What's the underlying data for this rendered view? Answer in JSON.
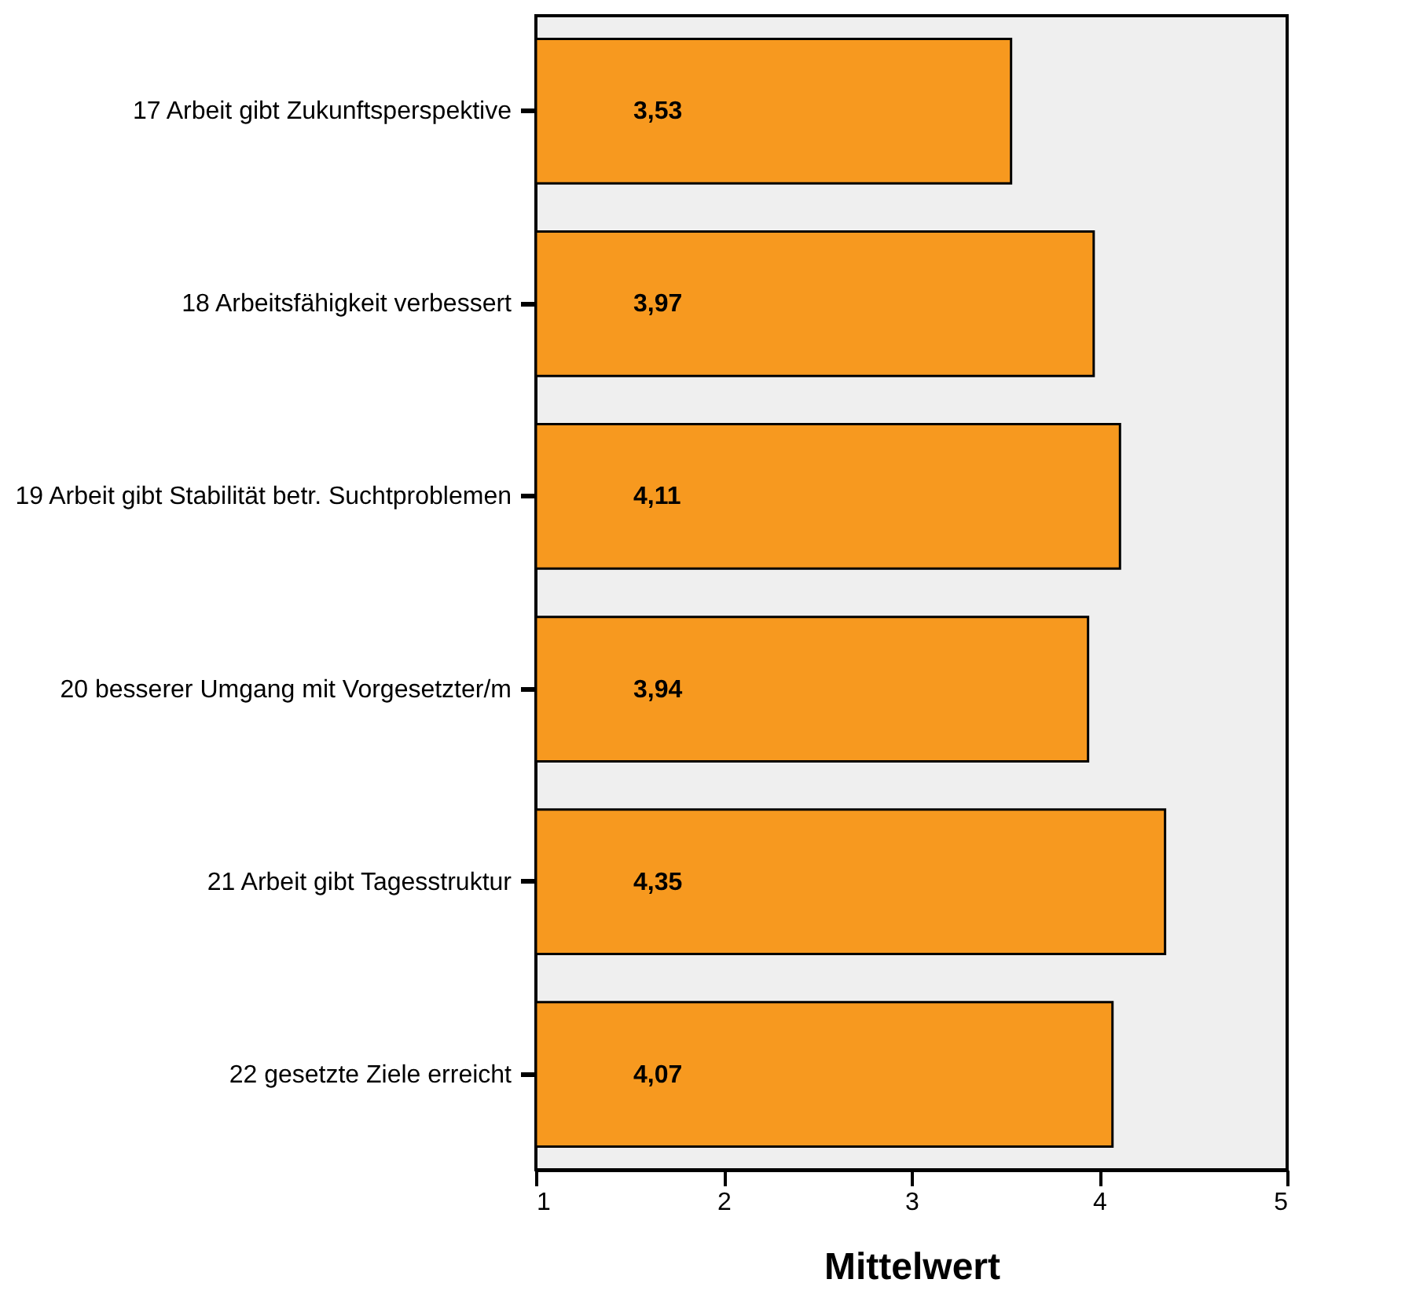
{
  "chart_data": {
    "type": "bar",
    "orientation": "horizontal",
    "xlabel": "Mittelwert",
    "categories": [
      "17 Arbeit gibt Zukunftsperspektive",
      "18 Arbeitsfähigkeit verbessert",
      "19 Arbeit gibt Stabilität betr. Suchtproblemen",
      "20 besserer Umgang mit Vorgesetzter/m",
      "21 Arbeit gibt Tagesstruktur",
      "22 gesetzte Ziele erreicht"
    ],
    "values": [
      3.53,
      3.97,
      4.11,
      3.94,
      4.35,
      4.07
    ],
    "value_labels": [
      "3,53",
      "3,97",
      "4,11",
      "3,94",
      "4,35",
      "4,07"
    ],
    "color": "#f7991f",
    "xlim": [
      1,
      5
    ],
    "xticks": [
      1,
      2,
      3,
      4,
      5
    ],
    "grid": false
  }
}
